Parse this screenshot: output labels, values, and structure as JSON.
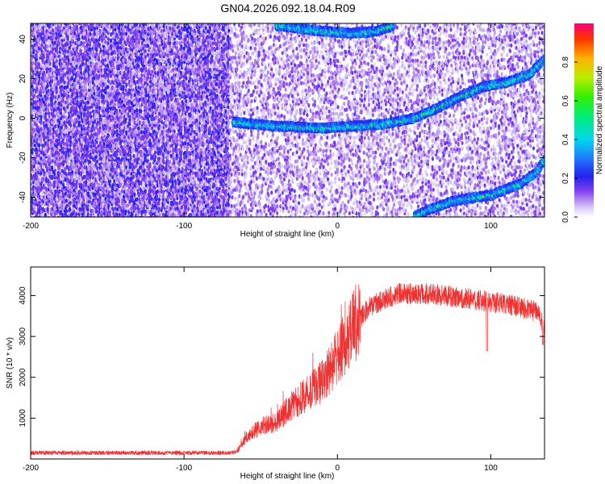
{
  "title": "GN04.2026.092.18.04.R09",
  "chart_data": [
    {
      "type": "heatmap",
      "xlabel": "Height of straight line (km)",
      "ylabel": "Frequency (Hz)",
      "xlim": [
        -200,
        135
      ],
      "ylim": [
        -50,
        48
      ],
      "xticks": [
        -200,
        -100,
        0,
        100
      ],
      "xtick_labels": [
        "-200",
        "-100",
        "0",
        "100"
      ],
      "yticks": [
        -40,
        -20,
        0,
        20,
        40
      ],
      "ytick_labels": [
        "-40",
        "-20",
        "0",
        "20",
        "40"
      ],
      "colorbar": {
        "label": "Normalized spectral amplitude",
        "range": [
          0.0,
          1.0
        ],
        "ticks": [
          0.0,
          0.2,
          0.4,
          0.6,
          0.8
        ],
        "tick_labels": [
          "0.0",
          "0.2",
          "0.4",
          "0.6",
          "0.8"
        ]
      },
      "ridges": [
        {
          "x": [
            -68,
            -40,
            -10,
            10,
            30,
            50,
            65,
            80,
            95,
            110,
            125,
            135
          ],
          "y": [
            -2,
            -4,
            -5,
            -4,
            -3,
            0,
            5,
            11,
            16,
            18,
            22,
            30
          ]
        },
        {
          "x": [
            -40,
            -10,
            10,
            25,
            37
          ],
          "y": [
            47,
            44,
            43,
            44,
            47
          ]
        },
        {
          "x": [
            50,
            60,
            65,
            75,
            90,
            100,
            110,
            120,
            130,
            135
          ],
          "y": [
            -50,
            -46,
            -45,
            -42,
            -40,
            -39,
            -36,
            -33,
            -27,
            -21
          ]
        }
      ],
      "noise_regime_boundary_x": -70
    },
    {
      "type": "line",
      "xlabel": "Height of straight line (km)",
      "ylabel": "SNR (10 * v/v)",
      "xlim": [
        -200,
        135
      ],
      "ylim": [
        0,
        4700
      ],
      "xticks": [
        -200,
        -100,
        0,
        100
      ],
      "xtick_labels": [
        "-200",
        "-100",
        "0",
        "100"
      ],
      "yticks": [
        1000,
        2000,
        3000,
        4000
      ],
      "ytick_labels": [
        "1000",
        "2000",
        "3000",
        "4000"
      ],
      "color": "#ee3333",
      "envelope": {
        "x": [
          -200,
          -150,
          -100,
          -70,
          -65,
          -60,
          -50,
          -40,
          -30,
          -20,
          -10,
          0,
          10,
          20,
          30,
          40,
          50,
          60,
          70,
          80,
          90,
          100,
          110,
          120,
          130,
          135
        ],
        "y": [
          150,
          150,
          150,
          150,
          200,
          500,
          800,
          900,
          1300,
          1600,
          1900,
          2500,
          3200,
          3700,
          3900,
          4050,
          4050,
          4050,
          4000,
          3950,
          3900,
          3850,
          3800,
          3700,
          3600,
          3200
        ]
      },
      "dips": [
        {
          "x": 97.5,
          "y": 2650
        },
        {
          "x": 134,
          "y": 2800
        }
      ]
    }
  ]
}
